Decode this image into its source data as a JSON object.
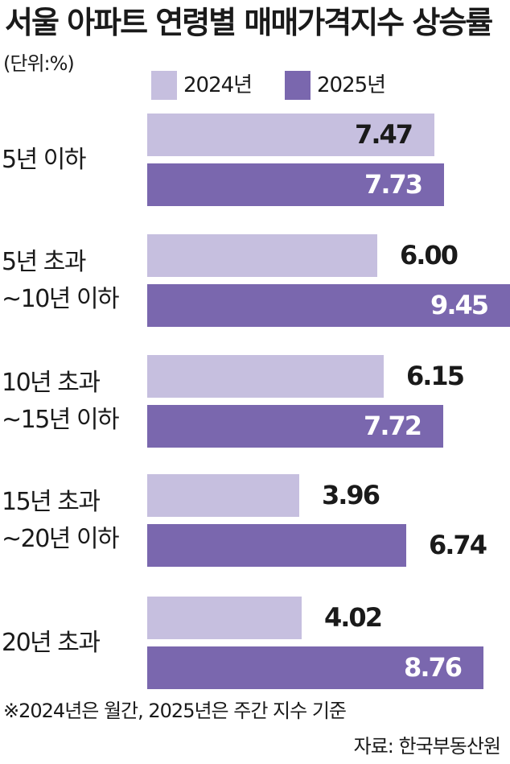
{
  "title": "서울 아파트 연령별 매매가격지수 상승률",
  "unit": "(단위:%)",
  "colors": {
    "series_2024": "#c6bfdf",
    "series_2025": "#7a67ae"
  },
  "chart_data": {
    "type": "bar",
    "orientation": "horizontal",
    "title": "서울 아파트 연령별 매매가격지수 상승률",
    "unit": "(단위:%)",
    "legend_position": "top",
    "categories": [
      [
        "5년 이하"
      ],
      [
        "5년 초과",
        "~10년 이하"
      ],
      [
        "10년 초과",
        "~15년 이하"
      ],
      [
        "15년 초과",
        "~20년 이하"
      ],
      [
        "20년 초과"
      ]
    ],
    "series": [
      {
        "name": "2024년",
        "values": [
          "7.47",
          "6.00",
          "6.15",
          "3.96",
          "4.02"
        ]
      },
      {
        "name": "2025년",
        "values": [
          "7.73",
          "9.45",
          "7.72",
          "6.74",
          "8.76"
        ]
      }
    ],
    "xlim": [
      0,
      9.45
    ]
  },
  "footnote": "※2024년은 월간, 2025년은 주간 지수 기준",
  "source": "자료: 한국부동산원"
}
